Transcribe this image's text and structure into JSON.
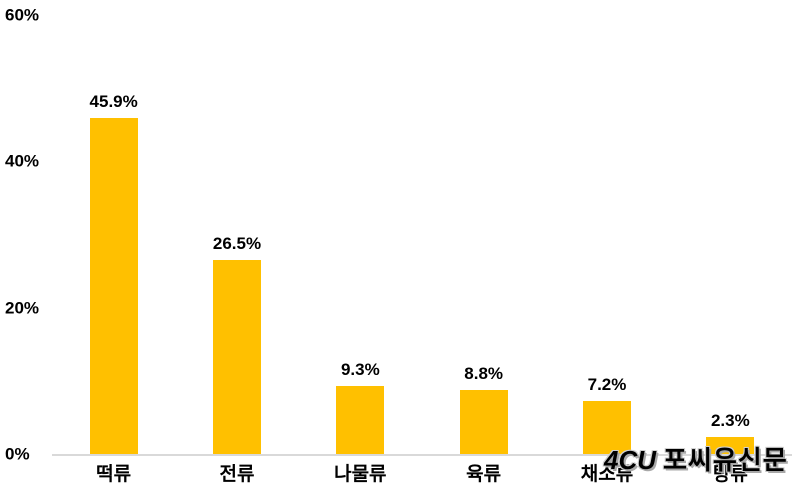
{
  "chart_data": {
    "type": "bar",
    "title": "",
    "xlabel": "",
    "ylabel": "",
    "categories": [
      "떡류",
      "전류",
      "나물류",
      "육류",
      "채소류",
      "탕류"
    ],
    "values": [
      45.9,
      26.5,
      9.3,
      8.8,
      7.2,
      2.3
    ],
    "value_labels": [
      "45.9%",
      "26.5%",
      "9.3%",
      "8.8%",
      "7.2%",
      "2.3%"
    ],
    "ylim": [
      0,
      60
    ],
    "y_tick_values": [
      0,
      20,
      40,
      60
    ],
    "y_tick_labels": [
      "0%",
      "20%",
      "40%",
      "60%"
    ],
    "grid": false,
    "legend": false,
    "bar_color": "#FFC000",
    "label_color": "#000000",
    "axis_line_color": "#D9D9D9",
    "background_color": "#FFFFFF"
  },
  "watermark": {
    "logo": "4CU",
    "text": "포씨유신문",
    "color": "#FFFFFF",
    "shadow_color": "#A8A8A8"
  }
}
